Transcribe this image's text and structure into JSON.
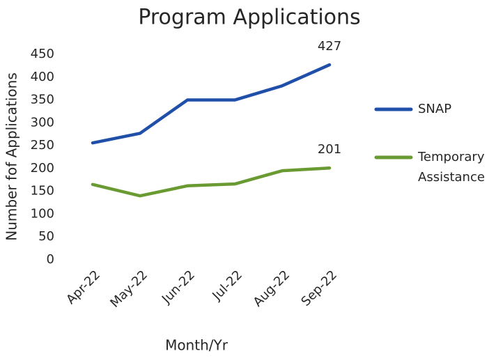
{
  "chart_data": {
    "type": "line",
    "title": "Program Applications",
    "x_label": "Month/Yr",
    "y_label": "Number fof Applications",
    "categories": [
      "Apr-22",
      "May-22",
      "Jun-22",
      "Jul-22",
      "Aug-22",
      "Sep-22"
    ],
    "series": [
      {
        "name": "SNAP",
        "color": "#1f4fa8",
        "values": [
          256,
          277,
          350,
          350,
          381,
          427
        ],
        "value_labels": [
          null,
          null,
          null,
          null,
          null,
          "427"
        ]
      },
      {
        "name": "Temporary Assistance",
        "color": "#6a9a32",
        "values": [
          165,
          140,
          162,
          166,
          195,
          201
        ],
        "value_labels": [
          null,
          null,
          null,
          null,
          null,
          "201"
        ]
      }
    ],
    "ylim": [
      0,
      450
    ],
    "yticks": [
      0,
      50,
      100,
      150,
      200,
      250,
      300,
      350,
      400,
      450
    ],
    "grid": false,
    "legend": "right"
  }
}
